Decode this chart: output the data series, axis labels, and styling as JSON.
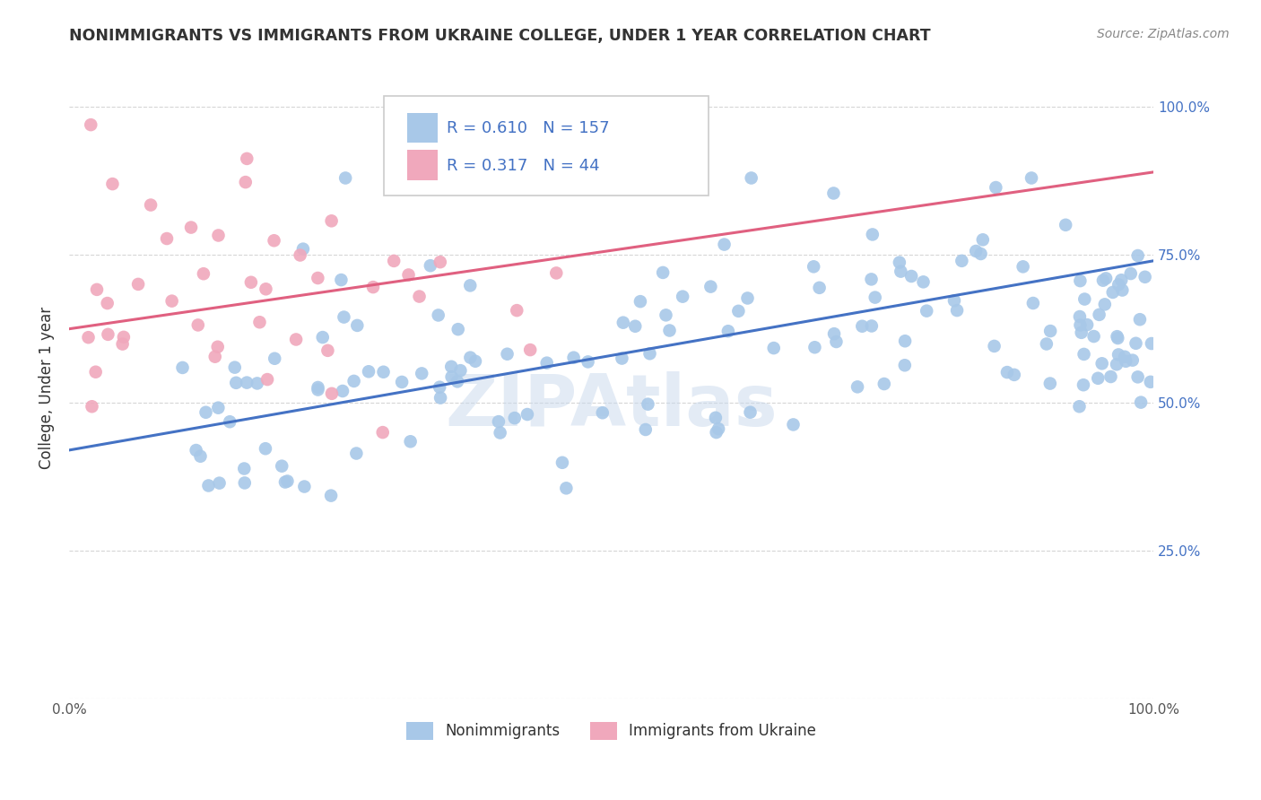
{
  "title": "NONIMMIGRANTS VS IMMIGRANTS FROM UKRAINE COLLEGE, UNDER 1 YEAR CORRELATION CHART",
  "source": "Source: ZipAtlas.com",
  "ylabel": "College, Under 1 year",
  "legend_labels": [
    "Nonimmigrants",
    "Immigrants from Ukraine"
  ],
  "blue_R": 0.61,
  "blue_N": 157,
  "pink_R": 0.317,
  "pink_N": 44,
  "blue_color": "#A8C8E8",
  "pink_color": "#F0A8BC",
  "blue_line_color": "#4472C4",
  "pink_line_color": "#E06080",
  "background_color": "#FFFFFF",
  "watermark": "ZIPAtlas",
  "xmin": 0.0,
  "xmax": 1.0,
  "ymin": 0.0,
  "ymax": 1.05,
  "blue_intercept": 0.42,
  "blue_slope": 0.32,
  "pink_intercept": 0.625,
  "pink_slope": 0.265
}
